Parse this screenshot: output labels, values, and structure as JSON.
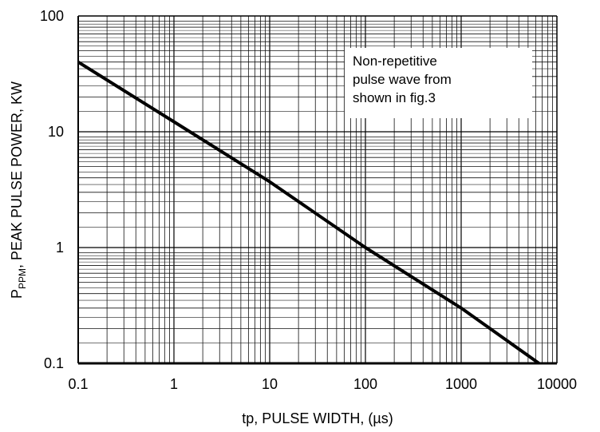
{
  "chart_data": {
    "type": "line",
    "x_scale": "log",
    "y_scale": "log",
    "xlim": [
      0.1,
      10000
    ],
    "ylim": [
      0.1,
      100
    ],
    "grid": true,
    "x_ticks": [
      "0.1",
      "1",
      "10",
      "100",
      "1000",
      "10000"
    ],
    "y_ticks": [
      "0.1",
      "1",
      "10",
      "100"
    ],
    "xlabel": "tp, PULSE WIDTH, (µs)",
    "ylabel": {
      "main": "P",
      "subscript": "PPM",
      "rest": ", PEAK PULSE POWER, KW"
    },
    "annotation": [
      "Non-repetitive",
      "pulse wave from",
      "shown in fig.3"
    ],
    "series": [
      {
        "x": [
          0.1,
          1,
          10,
          100,
          1000,
          6500
        ],
        "y": [
          40,
          12.2,
          3.7,
          1.0,
          0.3,
          0.1
        ]
      }
    ]
  }
}
